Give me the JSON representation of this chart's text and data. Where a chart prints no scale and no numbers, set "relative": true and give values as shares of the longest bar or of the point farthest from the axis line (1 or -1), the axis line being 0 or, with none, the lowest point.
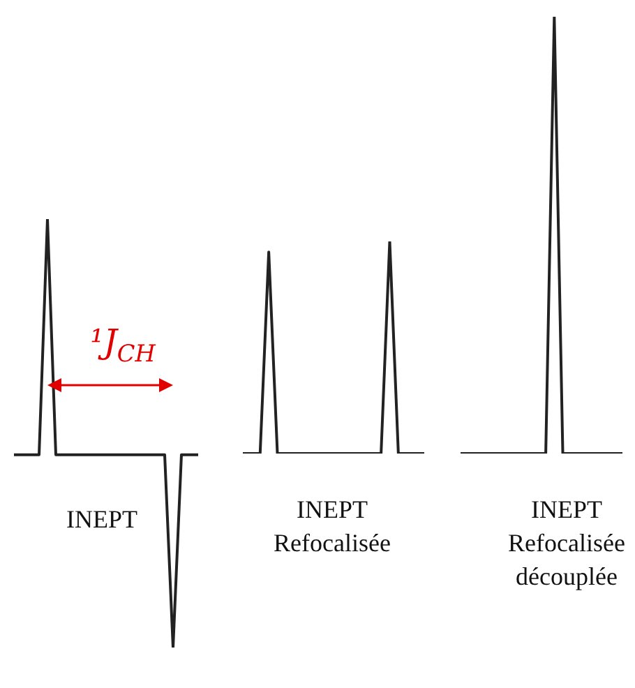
{
  "chart_data": [
    {
      "type": "line",
      "relative": true,
      "marker": "none",
      "line_style": "solid",
      "categories": [
        null,
        null,
        null,
        null,
        null,
        null,
        null,
        null,
        null,
        null,
        null,
        null,
        null,
        null,
        null,
        null,
        null,
        null,
        null,
        null,
        null,
        null,
        null
      ],
      "series": [
        {
          "color": "#222222",
          "values": [
            0.45,
            0.45,
            0.45,
            0.45,
            1,
            0.45,
            0.45,
            0.45,
            0.45,
            0.45,
            0.45,
            0.45,
            0.45,
            0.45,
            0.45,
            0.45,
            0.45,
            0.45,
            0.45,
            0,
            0.45,
            0.45,
            0.45
          ]
        }
      ],
      "annotations": [
        "¹J$_{CH}$",
        "INEPT"
      ]
    },
    {
      "type": "line",
      "relative": true,
      "marker": "none",
      "line_style": "solid",
      "categories": [
        null,
        null,
        null,
        null,
        null,
        null,
        null,
        null,
        null,
        null,
        null,
        null,
        null,
        null,
        null,
        null,
        null,
        null,
        null,
        null,
        null,
        null
      ],
      "series": [
        {
          "color": "#222222",
          "values": [
            0,
            0,
            0,
            0.95,
            0,
            0,
            0,
            0,
            0,
            0,
            0,
            0,
            0,
            0,
            0,
            0,
            0,
            1,
            0,
            0,
            0,
            0
          ]
        }
      ],
      "annotations": [
        "INEPT\nRefocalisée"
      ]
    },
    {
      "type": "line",
      "relative": true,
      "marker": "none",
      "line_style": "solid",
      "categories": [
        null,
        null,
        null,
        null,
        null,
        null,
        null,
        null,
        null,
        null,
        null,
        null,
        null,
        null,
        null,
        null,
        null,
        null,
        null,
        null
      ],
      "series": [
        {
          "color": "#222222",
          "values": [
            0,
            0,
            0,
            0,
            0,
            0,
            0,
            0,
            0,
            0,
            0,
            1,
            0,
            0,
            0,
            0,
            0,
            0,
            0,
            0
          ]
        }
      ],
      "annotations": [
        "INEPT\nRefocalisée\ndécouplée"
      ]
    }
  ]
}
